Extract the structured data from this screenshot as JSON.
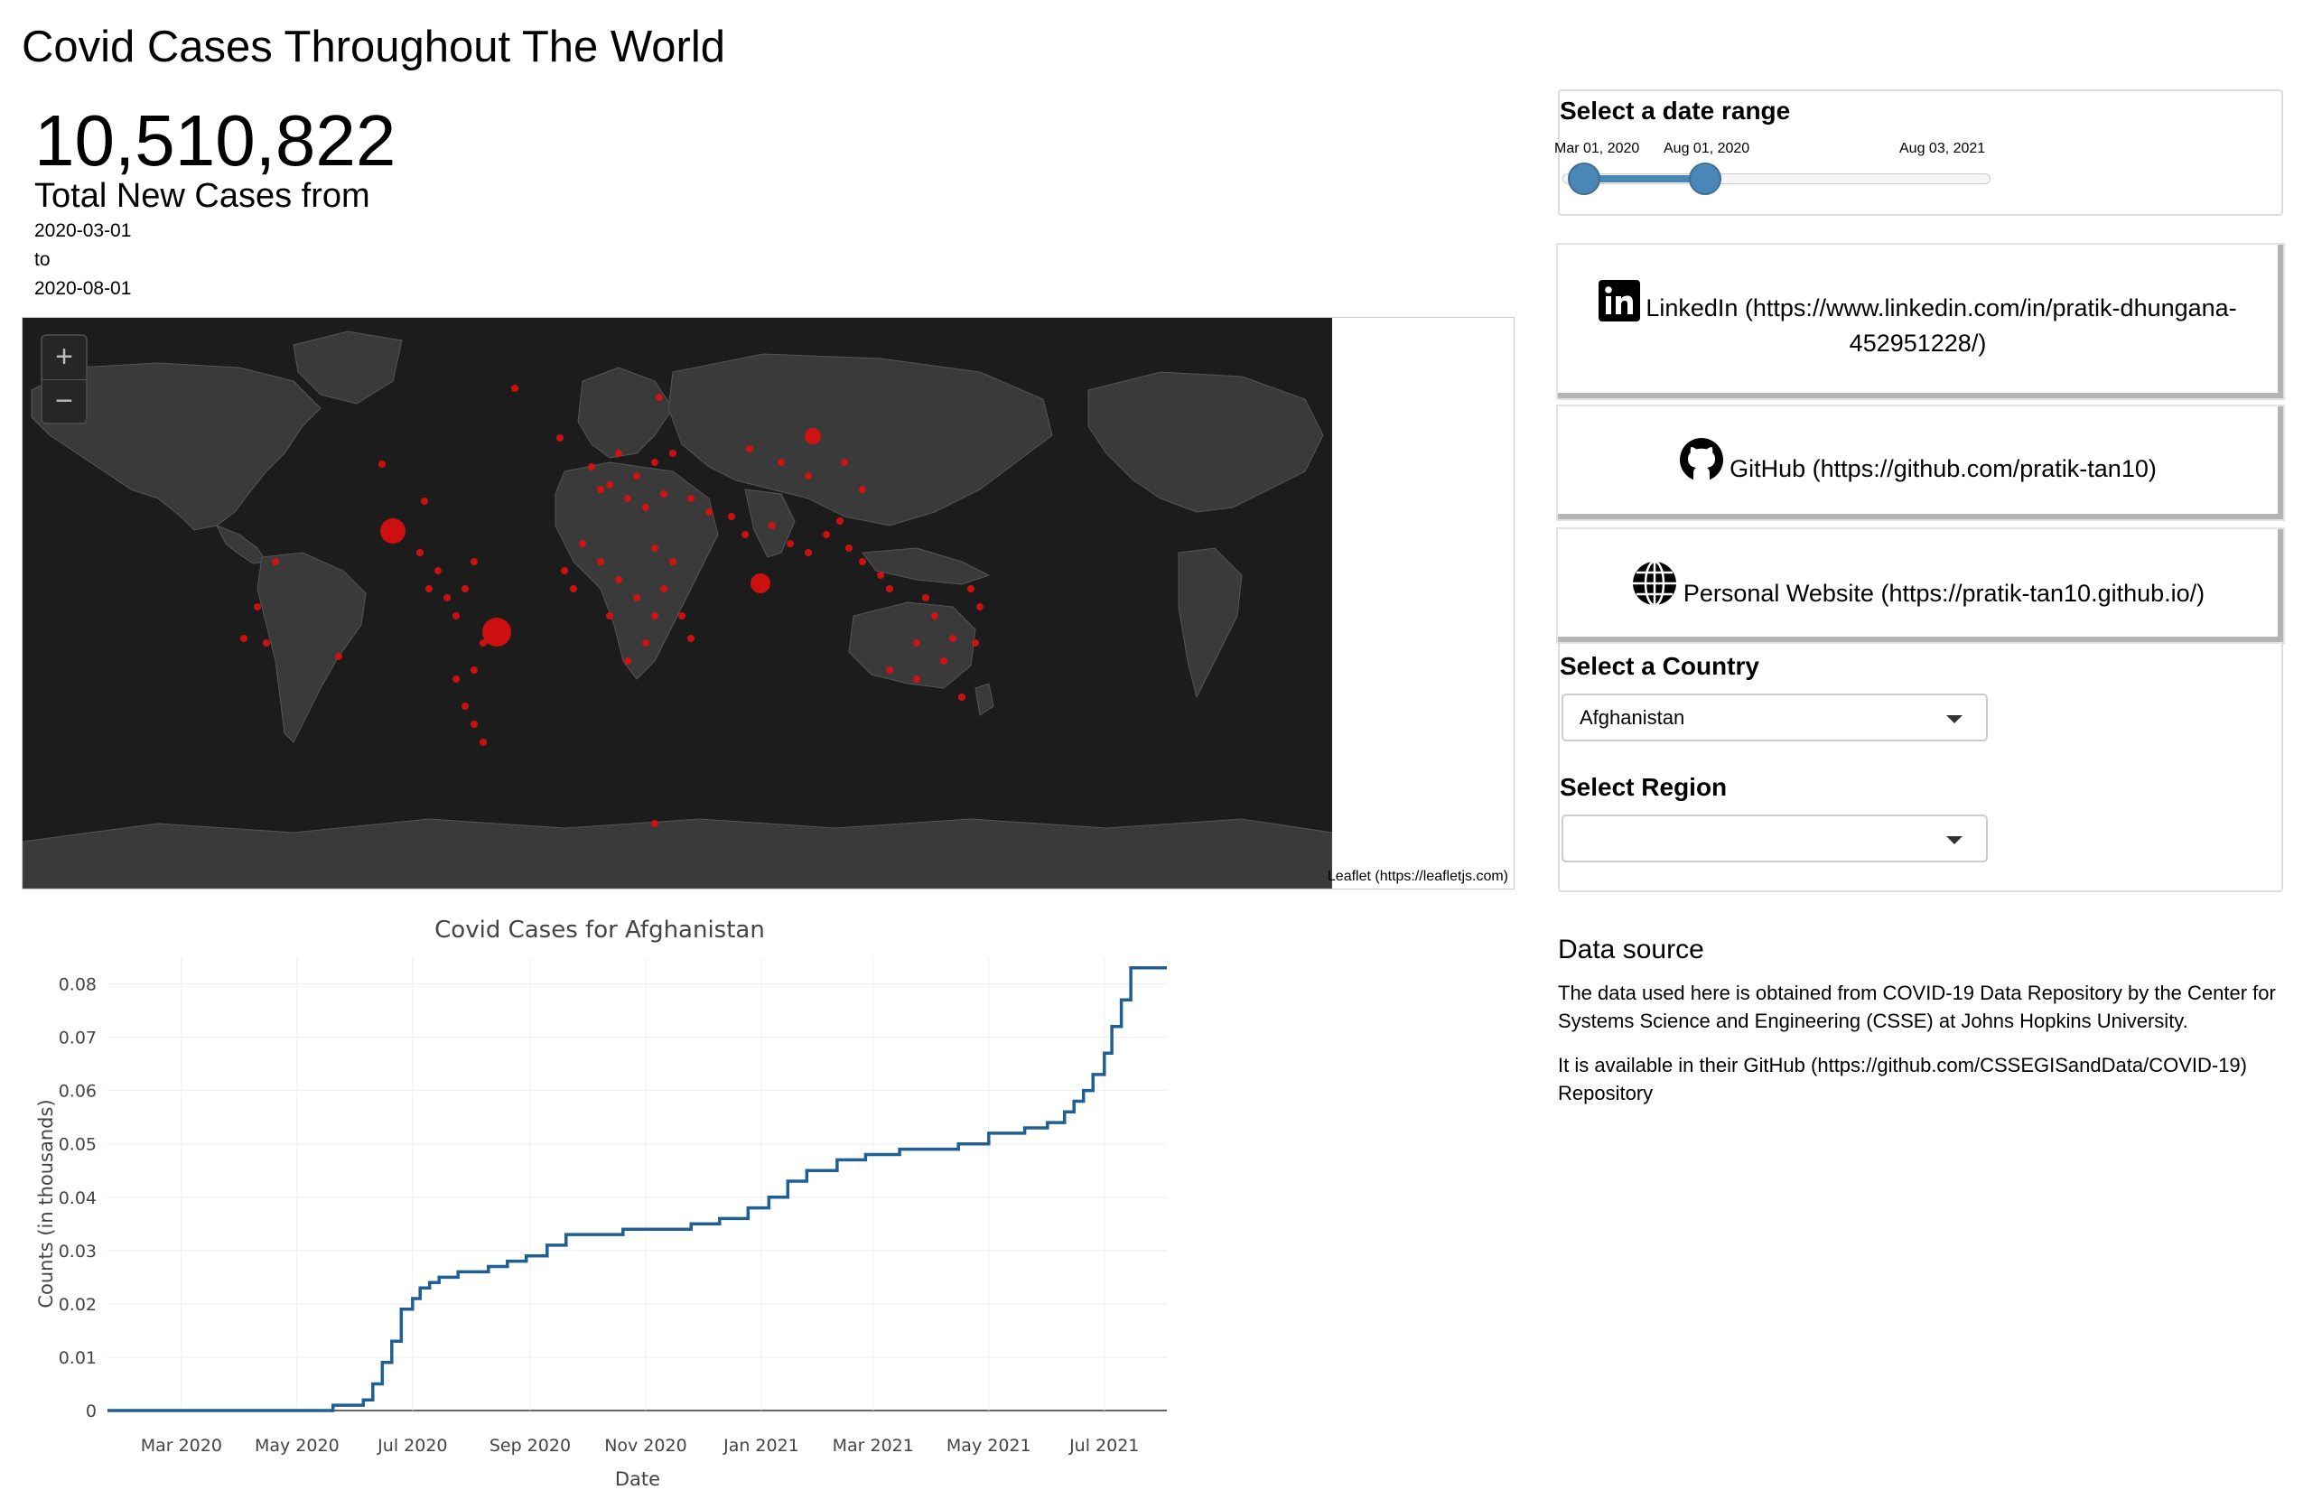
{
  "header": {
    "title": "Covid Cases Throughout The World"
  },
  "summary": {
    "total": "10,510,822",
    "label": "Total New Cases from",
    "start_date": "2020-03-01",
    "to": "to",
    "end_date": "2020-08-01"
  },
  "map": {
    "zoom_in": "+",
    "zoom_out": "−",
    "attribution": "Leaflet (https://leafletjs.com)",
    "background_color": "#1c1c1c",
    "land_color": "#3a3a3a",
    "marker_color": "#e01010"
  },
  "date_range": {
    "heading": "Select a date range",
    "start_label": "Mar 01, 2020",
    "end_label": "Aug 01, 2020",
    "max_label": "Aug 03, 2021",
    "accent": "#4b86b8"
  },
  "links": [
    {
      "icon": "linkedin-icon",
      "text": "LinkedIn (https://www.linkedin.com/in/pratik-dhungana-",
      "text2": "452951228/)"
    },
    {
      "icon": "github-icon",
      "text": "GitHub (https://github.com/pratik-tan10)"
    },
    {
      "icon": "globe-icon",
      "text": "Personal Website (https://pratik-tan10.github.io/)"
    }
  ],
  "country_select": {
    "heading": "Select a Country",
    "value": "Afghanistan"
  },
  "region_select": {
    "heading": "Select Region",
    "value": ""
  },
  "data_source": {
    "title": "Data source",
    "para1_line1": "The data used here is obtained from COVID-19 Data Repository by the Center for",
    "para1_line2": "Systems Science and Engineering (CSSE) at Johns Hopkins University.",
    "para2_line1": "It is available in their GitHub (https://github.com/CSSEGISandData/COVID-19)",
    "para2_line2": "Repository"
  },
  "chart_data": {
    "type": "line",
    "title": "Covid Cases for Afghanistan",
    "xlabel": "Date",
    "ylabel": "Counts (in thousands)",
    "ylim": [
      0,
      0.085
    ],
    "yticks": [
      0,
      0.01,
      0.02,
      0.03,
      0.04,
      0.05,
      0.06,
      0.07,
      0.08
    ],
    "ytick_labels": [
      "0",
      "0.01",
      "0.02",
      "0.03",
      "0.04",
      "0.05",
      "0.06",
      "0.07",
      "0.08"
    ],
    "xticks": [
      "2020-03-01",
      "2020-05-01",
      "2020-07-01",
      "2020-09-01",
      "2020-11-01",
      "2021-01-01",
      "2021-03-01",
      "2021-05-01",
      "2021-07-01"
    ],
    "xtick_labels": [
      "Mar 2020",
      "May 2020",
      "Jul 2020",
      "Sep 2020",
      "Nov 2020",
      "Jan 2021",
      "Mar 2021",
      "May 2021",
      "Jul 2021"
    ],
    "xlim": [
      "2020-01-22",
      "2021-08-03"
    ],
    "grid": true,
    "color": "#1f5f94",
    "series": [
      {
        "x": [
          "2020-01-22",
          "2020-05-15",
          "2020-05-20",
          "2020-06-01",
          "2020-06-05",
          "2020-06-10",
          "2020-06-15",
          "2020-06-20",
          "2020-06-25",
          "2020-07-01",
          "2020-07-05",
          "2020-07-10",
          "2020-07-15",
          "2020-07-20",
          "2020-07-25",
          "2020-08-01",
          "2020-08-10",
          "2020-08-20",
          "2020-08-30",
          "2020-09-10",
          "2020-09-20",
          "2020-10-01",
          "2020-10-20",
          "2020-11-10",
          "2020-11-25",
          "2020-12-10",
          "2020-12-25",
          "2021-01-05",
          "2021-01-15",
          "2021-01-25",
          "2021-02-10",
          "2021-02-25",
          "2021-03-15",
          "2021-04-01",
          "2021-04-15",
          "2021-05-01",
          "2021-05-10",
          "2021-05-20",
          "2021-06-01",
          "2021-06-10",
          "2021-06-15",
          "2021-06-20",
          "2021-06-25",
          "2021-07-01",
          "2021-07-05",
          "2021-07-10",
          "2021-07-15",
          "2021-08-03"
        ],
        "values": [
          0,
          0,
          0.001,
          0.001,
          0.002,
          0.005,
          0.009,
          0.013,
          0.019,
          0.021,
          0.023,
          0.024,
          0.025,
          0.025,
          0.026,
          0.026,
          0.027,
          0.028,
          0.029,
          0.031,
          0.033,
          0.033,
          0.034,
          0.034,
          0.035,
          0.036,
          0.038,
          0.04,
          0.043,
          0.045,
          0.047,
          0.048,
          0.049,
          0.049,
          0.05,
          0.052,
          0.052,
          0.053,
          0.054,
          0.056,
          0.058,
          0.06,
          0.063,
          0.067,
          0.072,
          0.077,
          0.083,
          0.083
        ]
      }
    ]
  }
}
